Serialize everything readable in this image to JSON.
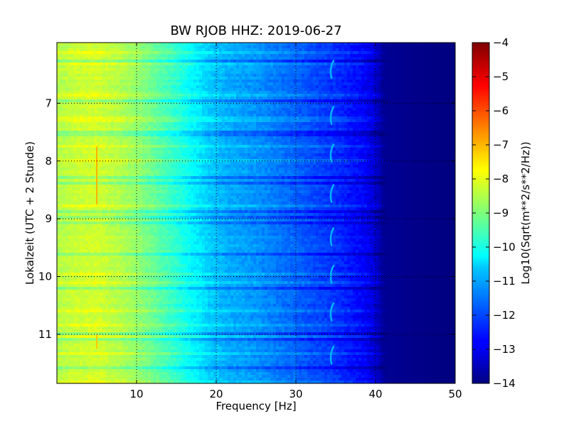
{
  "chart_data": {
    "type": "heatmap",
    "title": "BW RJOB HHZ: 2019-06-27",
    "xlabel": "Frequency [Hz]",
    "ylabel": "Lokalzeit (UTC + 2 Stunde)",
    "xlim": [
      0,
      50
    ],
    "ylim": [
      5.95,
      11.85
    ],
    "y_inverted": true,
    "grid": true,
    "x_ticks": [
      10,
      20,
      30,
      40,
      50
    ],
    "x_tick_labels": [
      "10",
      "20",
      "30",
      "40",
      "50"
    ],
    "y_ticks": [
      7,
      8,
      9,
      10,
      11
    ],
    "y_tick_labels": [
      "7",
      "8",
      "9",
      "10",
      "11"
    ],
    "colormap": "jet",
    "colorbar": {
      "label": "Log10(Sqrt(m**2/s**2/Hz))",
      "range": [
        -14,
        -4
      ],
      "ticks": [
        -4,
        -5,
        -6,
        -7,
        -8,
        -9,
        -10,
        -11,
        -12,
        -13,
        -14
      ],
      "tick_labels": [
        "−4",
        "−5",
        "−6",
        "−7",
        "−8",
        "−9",
        "−10",
        "−11",
        "−12",
        "−13",
        "−14"
      ]
    },
    "frequency_profile": {
      "frequency_hz": [
        0,
        2,
        5,
        8,
        10,
        13,
        15,
        17,
        19,
        20,
        22,
        25,
        28,
        30,
        33,
        35,
        38,
        39,
        40,
        41,
        45,
        50
      ],
      "level": [
        -8.5,
        -8.3,
        -8.2,
        -8.5,
        -8.8,
        -9.4,
        -9.8,
        -10.3,
        -10.7,
        -10.9,
        -11.1,
        -11.3,
        -11.6,
        -11.8,
        -12.1,
        -12.3,
        -12.7,
        -12.9,
        -13.2,
        -13.8,
        -13.9,
        -14.0
      ]
    },
    "features": [
      {
        "name": "narrow spectral line near 5 Hz",
        "frequency_hz": 5.0,
        "time_range": [
          7.75,
          8.75
        ],
        "level": -7.0
      },
      {
        "name": "narrow spectral line near 5 Hz",
        "frequency_hz": 5.0,
        "time_range": [
          11.0,
          11.25
        ],
        "level": -7.2
      },
      {
        "name": "recurring arc near 34.5 Hz",
        "frequency_hz": 34.5,
        "times": [
          6.4,
          7.2,
          7.85,
          8.55,
          9.3,
          9.95,
          10.6,
          11.35
        ],
        "level": -11.0
      }
    ]
  }
}
